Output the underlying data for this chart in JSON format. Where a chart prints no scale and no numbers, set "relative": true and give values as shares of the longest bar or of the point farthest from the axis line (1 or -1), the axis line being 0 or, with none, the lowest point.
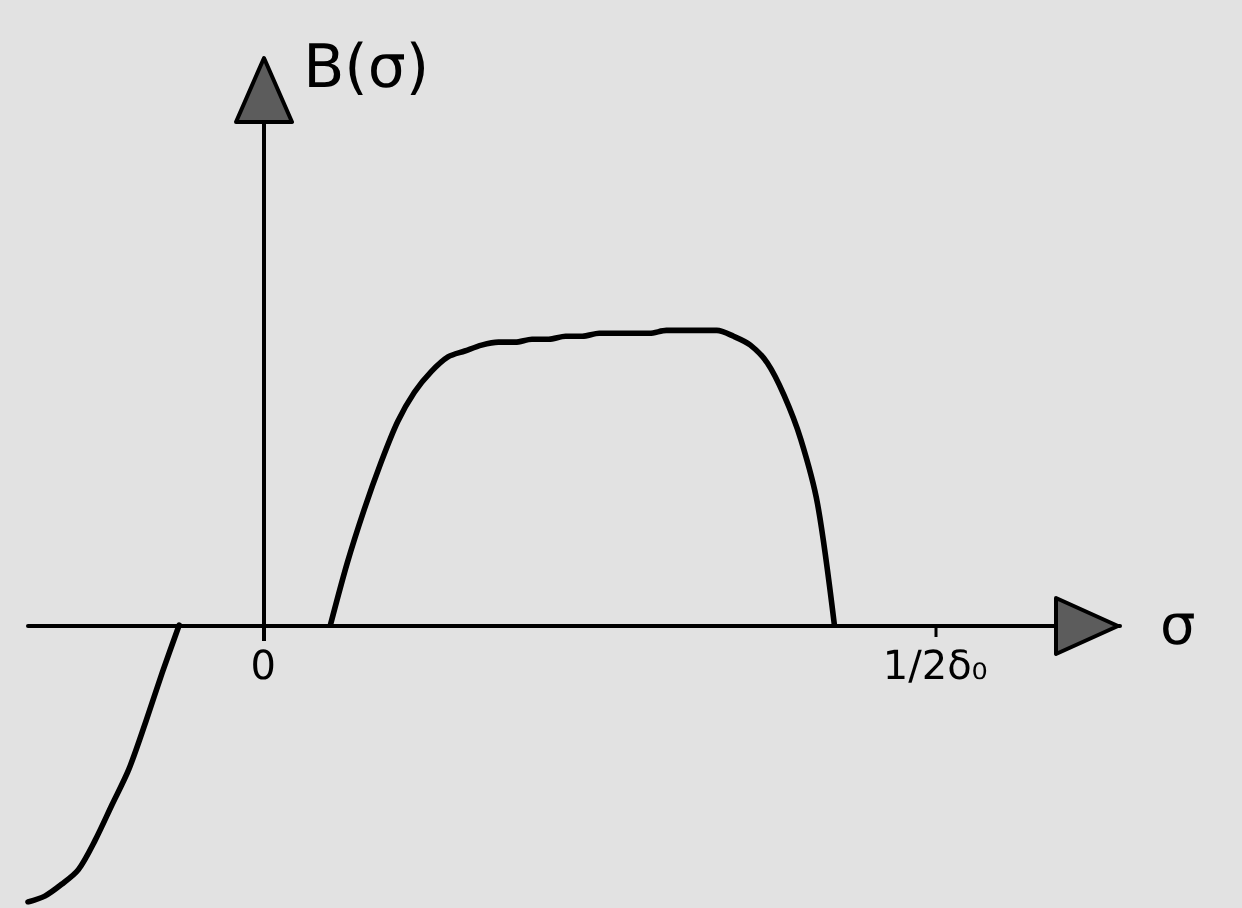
{
  "chart_data": {
    "type": "line",
    "relative": true,
    "xlabel": "σ",
    "ylabel": "B(σ)",
    "grid": false,
    "marker": "none",
    "categories": [
      null,
      null,
      null,
      null,
      null,
      null,
      null,
      null,
      null,
      null,
      null,
      null,
      null,
      null,
      "0",
      null,
      null,
      null,
      null,
      null,
      null,
      null,
      null,
      null,
      null,
      null,
      null,
      null,
      null,
      null,
      null,
      null,
      null,
      null,
      null,
      null,
      null,
      null,
      null,
      null,
      null,
      null,
      null,
      null,
      null,
      null,
      null,
      null,
      null,
      null,
      null,
      null,
      null,
      null,
      "1/2δ₀",
      null,
      null,
      null,
      null,
      null,
      null,
      null,
      null,
      null,
      null,
      null
    ],
    "ref_lines": [
      {
        "axis": "x",
        "value": "0"
      }
    ],
    "series": [
      {
        "color": "#000000",
        "values": [
          null,
          null,
          null,
          null,
          null,
          null,
          null,
          null,
          null,
          null,
          null,
          null,
          null,
          null,
          null,
          null,
          null,
          null,
          0,
          0.21,
          0.39,
          0.55,
          0.69,
          0.79,
          0.86,
          0.91,
          0.93,
          0.95,
          0.96,
          0.96,
          0.97,
          0.97,
          0.98,
          0.98,
          0.99,
          0.99,
          0.99,
          0.99,
          1,
          1,
          1,
          1,
          0.98,
          0.95,
          0.89,
          0.78,
          0.63,
          0.41,
          0,
          null,
          null,
          null,
          null,
          null,
          null,
          null,
          null,
          null,
          null,
          null,
          null,
          null,
          null,
          null,
          null,
          null
        ]
      },
      {
        "color": "#000000",
        "values": [
          -0.94,
          -0.92,
          -0.88,
          -0.83,
          -0.73,
          -0.61,
          -0.49,
          -0.33,
          -0.16,
          0,
          null,
          null,
          null,
          null,
          null,
          null,
          null,
          null,
          null,
          null,
          null,
          null,
          null,
          null,
          null,
          null,
          null,
          null,
          null,
          null,
          null,
          null,
          null,
          null,
          null,
          null,
          null,
          null,
          null,
          null,
          null,
          null,
          null,
          null,
          null,
          null,
          null,
          null,
          null,
          null,
          null,
          null,
          null,
          null,
          null,
          null,
          null,
          null,
          null,
          null,
          null,
          null,
          null,
          null,
          null,
          null
        ]
      }
    ]
  }
}
